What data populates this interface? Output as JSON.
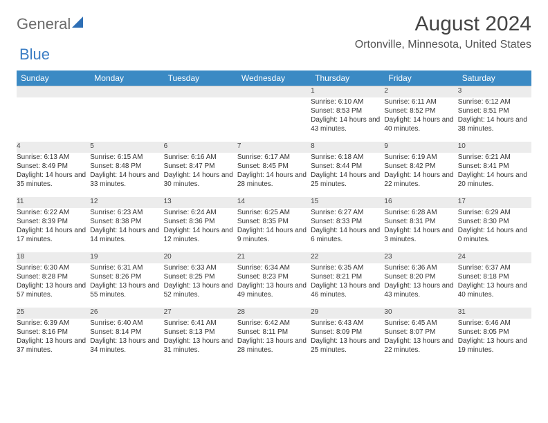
{
  "logo": {
    "general": "General",
    "blue": "Blue"
  },
  "header": {
    "month_title": "August 2024",
    "location": "Ortonville, Minnesota, United States"
  },
  "style": {
    "header_bg": "#3b8ac4",
    "header_fg": "#ffffff",
    "daynum_bg": "#ececec",
    "day_border": "#2e6fb5",
    "body_bg": "#ffffff",
    "body_fg": "#333333"
  },
  "day_names": [
    "Sunday",
    "Monday",
    "Tuesday",
    "Wednesday",
    "Thursday",
    "Friday",
    "Saturday"
  ],
  "weeks": [
    [
      null,
      null,
      null,
      null,
      {
        "n": "1",
        "sunrise": "Sunrise: 6:10 AM",
        "sunset": "Sunset: 8:53 PM",
        "daylight": "Daylight: 14 hours and 43 minutes."
      },
      {
        "n": "2",
        "sunrise": "Sunrise: 6:11 AM",
        "sunset": "Sunset: 8:52 PM",
        "daylight": "Daylight: 14 hours and 40 minutes."
      },
      {
        "n": "3",
        "sunrise": "Sunrise: 6:12 AM",
        "sunset": "Sunset: 8:51 PM",
        "daylight": "Daylight: 14 hours and 38 minutes."
      }
    ],
    [
      {
        "n": "4",
        "sunrise": "Sunrise: 6:13 AM",
        "sunset": "Sunset: 8:49 PM",
        "daylight": "Daylight: 14 hours and 35 minutes."
      },
      {
        "n": "5",
        "sunrise": "Sunrise: 6:15 AM",
        "sunset": "Sunset: 8:48 PM",
        "daylight": "Daylight: 14 hours and 33 minutes."
      },
      {
        "n": "6",
        "sunrise": "Sunrise: 6:16 AM",
        "sunset": "Sunset: 8:47 PM",
        "daylight": "Daylight: 14 hours and 30 minutes."
      },
      {
        "n": "7",
        "sunrise": "Sunrise: 6:17 AM",
        "sunset": "Sunset: 8:45 PM",
        "daylight": "Daylight: 14 hours and 28 minutes."
      },
      {
        "n": "8",
        "sunrise": "Sunrise: 6:18 AM",
        "sunset": "Sunset: 8:44 PM",
        "daylight": "Daylight: 14 hours and 25 minutes."
      },
      {
        "n": "9",
        "sunrise": "Sunrise: 6:19 AM",
        "sunset": "Sunset: 8:42 PM",
        "daylight": "Daylight: 14 hours and 22 minutes."
      },
      {
        "n": "10",
        "sunrise": "Sunrise: 6:21 AM",
        "sunset": "Sunset: 8:41 PM",
        "daylight": "Daylight: 14 hours and 20 minutes."
      }
    ],
    [
      {
        "n": "11",
        "sunrise": "Sunrise: 6:22 AM",
        "sunset": "Sunset: 8:39 PM",
        "daylight": "Daylight: 14 hours and 17 minutes."
      },
      {
        "n": "12",
        "sunrise": "Sunrise: 6:23 AM",
        "sunset": "Sunset: 8:38 PM",
        "daylight": "Daylight: 14 hours and 14 minutes."
      },
      {
        "n": "13",
        "sunrise": "Sunrise: 6:24 AM",
        "sunset": "Sunset: 8:36 PM",
        "daylight": "Daylight: 14 hours and 12 minutes."
      },
      {
        "n": "14",
        "sunrise": "Sunrise: 6:25 AM",
        "sunset": "Sunset: 8:35 PM",
        "daylight": "Daylight: 14 hours and 9 minutes."
      },
      {
        "n": "15",
        "sunrise": "Sunrise: 6:27 AM",
        "sunset": "Sunset: 8:33 PM",
        "daylight": "Daylight: 14 hours and 6 minutes."
      },
      {
        "n": "16",
        "sunrise": "Sunrise: 6:28 AM",
        "sunset": "Sunset: 8:31 PM",
        "daylight": "Daylight: 14 hours and 3 minutes."
      },
      {
        "n": "17",
        "sunrise": "Sunrise: 6:29 AM",
        "sunset": "Sunset: 8:30 PM",
        "daylight": "Daylight: 14 hours and 0 minutes."
      }
    ],
    [
      {
        "n": "18",
        "sunrise": "Sunrise: 6:30 AM",
        "sunset": "Sunset: 8:28 PM",
        "daylight": "Daylight: 13 hours and 57 minutes."
      },
      {
        "n": "19",
        "sunrise": "Sunrise: 6:31 AM",
        "sunset": "Sunset: 8:26 PM",
        "daylight": "Daylight: 13 hours and 55 minutes."
      },
      {
        "n": "20",
        "sunrise": "Sunrise: 6:33 AM",
        "sunset": "Sunset: 8:25 PM",
        "daylight": "Daylight: 13 hours and 52 minutes."
      },
      {
        "n": "21",
        "sunrise": "Sunrise: 6:34 AM",
        "sunset": "Sunset: 8:23 PM",
        "daylight": "Daylight: 13 hours and 49 minutes."
      },
      {
        "n": "22",
        "sunrise": "Sunrise: 6:35 AM",
        "sunset": "Sunset: 8:21 PM",
        "daylight": "Daylight: 13 hours and 46 minutes."
      },
      {
        "n": "23",
        "sunrise": "Sunrise: 6:36 AM",
        "sunset": "Sunset: 8:20 PM",
        "daylight": "Daylight: 13 hours and 43 minutes."
      },
      {
        "n": "24",
        "sunrise": "Sunrise: 6:37 AM",
        "sunset": "Sunset: 8:18 PM",
        "daylight": "Daylight: 13 hours and 40 minutes."
      }
    ],
    [
      {
        "n": "25",
        "sunrise": "Sunrise: 6:39 AM",
        "sunset": "Sunset: 8:16 PM",
        "daylight": "Daylight: 13 hours and 37 minutes."
      },
      {
        "n": "26",
        "sunrise": "Sunrise: 6:40 AM",
        "sunset": "Sunset: 8:14 PM",
        "daylight": "Daylight: 13 hours and 34 minutes."
      },
      {
        "n": "27",
        "sunrise": "Sunrise: 6:41 AM",
        "sunset": "Sunset: 8:13 PM",
        "daylight": "Daylight: 13 hours and 31 minutes."
      },
      {
        "n": "28",
        "sunrise": "Sunrise: 6:42 AM",
        "sunset": "Sunset: 8:11 PM",
        "daylight": "Daylight: 13 hours and 28 minutes."
      },
      {
        "n": "29",
        "sunrise": "Sunrise: 6:43 AM",
        "sunset": "Sunset: 8:09 PM",
        "daylight": "Daylight: 13 hours and 25 minutes."
      },
      {
        "n": "30",
        "sunrise": "Sunrise: 6:45 AM",
        "sunset": "Sunset: 8:07 PM",
        "daylight": "Daylight: 13 hours and 22 minutes."
      },
      {
        "n": "31",
        "sunrise": "Sunrise: 6:46 AM",
        "sunset": "Sunset: 8:05 PM",
        "daylight": "Daylight: 13 hours and 19 minutes."
      }
    ]
  ]
}
